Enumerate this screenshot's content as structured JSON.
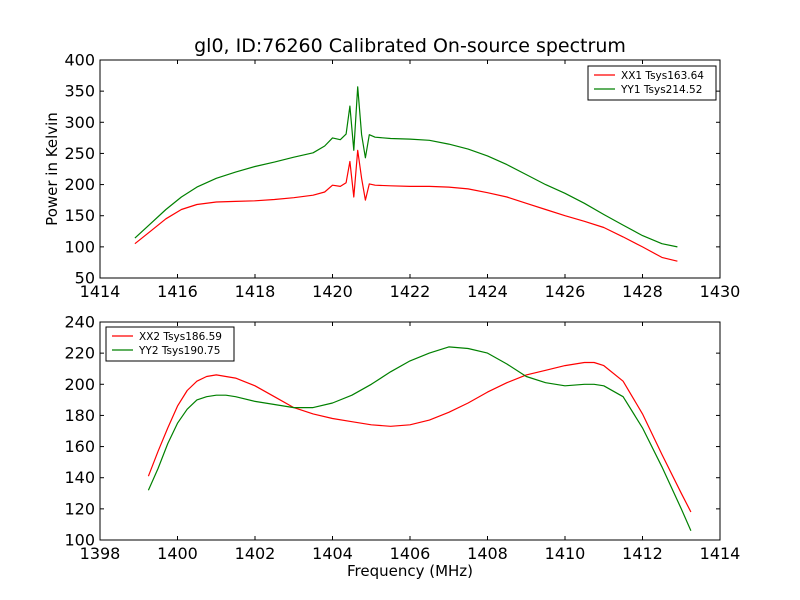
{
  "chart_data": [
    {
      "type": "line",
      "title": "gl0, ID:76260 Calibrated On-source spectrum",
      "xlabel": "",
      "ylabel": "Power in Kelvin",
      "xlim": [
        1414,
        1430
      ],
      "ylim": [
        50,
        400
      ],
      "xticks": [
        1414,
        1416,
        1418,
        1420,
        1422,
        1424,
        1426,
        1428,
        1430
      ],
      "yticks": [
        50,
        100,
        150,
        200,
        250,
        300,
        350,
        400
      ],
      "legend_position": "top-right",
      "grid": false,
      "series": [
        {
          "name": "XX1 Tsys163.64",
          "color": "#ff0000",
          "x": [
            1414.9,
            1415.3,
            1415.7,
            1416.1,
            1416.5,
            1417.0,
            1417.5,
            1418.0,
            1418.5,
            1419.0,
            1419.5,
            1419.8,
            1420.0,
            1420.2,
            1420.35,
            1420.45,
            1420.55,
            1420.65,
            1420.75,
            1420.85,
            1420.95,
            1421.1,
            1421.5,
            1422.0,
            1422.5,
            1423.0,
            1423.5,
            1424.0,
            1424.5,
            1425.0,
            1425.5,
            1426.0,
            1426.5,
            1427.0,
            1427.5,
            1428.0,
            1428.5,
            1428.9
          ],
          "y": [
            105,
            125,
            145,
            160,
            168,
            172,
            173,
            174,
            176,
            179,
            183,
            188,
            199,
            197,
            203,
            237,
            180,
            255,
            210,
            175,
            201,
            199,
            198,
            197,
            197,
            196,
            193,
            187,
            180,
            170,
            160,
            150,
            141,
            131,
            116,
            100,
            83,
            77
          ]
        },
        {
          "name": "YY1 Tsys214.52",
          "color": "#008000",
          "x": [
            1414.9,
            1415.3,
            1415.7,
            1416.1,
            1416.5,
            1417.0,
            1417.5,
            1418.0,
            1418.5,
            1419.0,
            1419.5,
            1419.8,
            1420.0,
            1420.2,
            1420.35,
            1420.45,
            1420.55,
            1420.65,
            1420.75,
            1420.85,
            1420.95,
            1421.1,
            1421.5,
            1422.0,
            1422.5,
            1423.0,
            1423.5,
            1424.0,
            1424.5,
            1425.0,
            1425.5,
            1426.0,
            1426.5,
            1427.0,
            1427.5,
            1428.0,
            1428.5,
            1428.9
          ],
          "y": [
            114,
            137,
            160,
            180,
            196,
            210,
            220,
            229,
            236,
            244,
            251,
            262,
            275,
            272,
            281,
            326,
            255,
            357,
            280,
            243,
            280,
            276,
            274,
            273,
            271,
            265,
            257,
            246,
            232,
            216,
            200,
            186,
            170,
            152,
            135,
            118,
            105,
            100
          ]
        }
      ]
    },
    {
      "type": "line",
      "title": "",
      "xlabel": "Frequency (MHz)",
      "ylabel": "",
      "xlim": [
        1398,
        1414
      ],
      "ylim": [
        100,
        240
      ],
      "xticks": [
        1398,
        1400,
        1402,
        1404,
        1406,
        1408,
        1410,
        1412,
        1414
      ],
      "yticks": [
        100,
        120,
        140,
        160,
        180,
        200,
        220,
        240
      ],
      "legend_position": "top-left",
      "grid": false,
      "series": [
        {
          "name": "XX2 Tsys186.59",
          "color": "#ff0000",
          "x": [
            1399.25,
            1399.5,
            1399.75,
            1400.0,
            1400.25,
            1400.5,
            1400.75,
            1401.0,
            1401.25,
            1401.5,
            1402.0,
            1402.5,
            1403.0,
            1403.5,
            1404.0,
            1404.5,
            1405.0,
            1405.5,
            1406.0,
            1406.5,
            1407.0,
            1407.5,
            1408.0,
            1408.5,
            1409.0,
            1409.5,
            1410.0,
            1410.5,
            1410.75,
            1411.0,
            1411.5,
            1412.0,
            1412.5,
            1413.0,
            1413.25
          ],
          "y": [
            141,
            157,
            172,
            186,
            196,
            202,
            205,
            206,
            205,
            204,
            199,
            192,
            185,
            181,
            178,
            176,
            174,
            173,
            174,
            177,
            182,
            188,
            195,
            201,
            206,
            209,
            212,
            214,
            214,
            212,
            202,
            181,
            155,
            130,
            118
          ]
        },
        {
          "name": "YY2 Tsys190.75",
          "color": "#008000",
          "x": [
            1399.25,
            1399.5,
            1399.75,
            1400.0,
            1400.25,
            1400.5,
            1400.75,
            1401.0,
            1401.25,
            1401.5,
            1402.0,
            1402.5,
            1403.0,
            1403.5,
            1404.0,
            1404.5,
            1405.0,
            1405.5,
            1406.0,
            1406.5,
            1407.0,
            1407.5,
            1408.0,
            1408.5,
            1409.0,
            1409.5,
            1410.0,
            1410.5,
            1410.75,
            1411.0,
            1411.5,
            1412.0,
            1412.5,
            1413.0,
            1413.25
          ],
          "y": [
            132,
            146,
            162,
            175,
            184,
            190,
            192,
            193,
            193,
            192,
            189,
            187,
            185,
            185,
            188,
            193,
            200,
            208,
            215,
            220,
            224,
            223,
            220,
            213,
            205,
            201,
            199,
            200,
            200,
            199,
            192,
            172,
            147,
            120,
            106
          ]
        }
      ]
    }
  ]
}
